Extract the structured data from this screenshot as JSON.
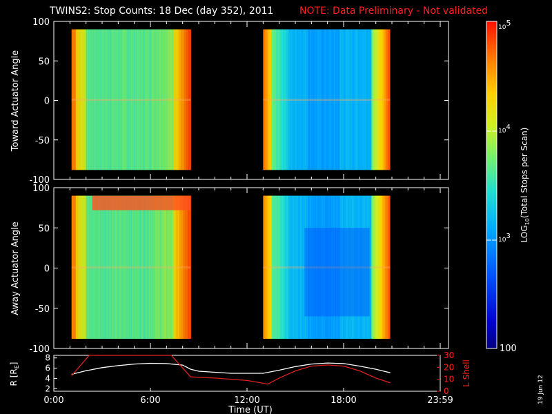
{
  "header": {
    "title": "TWINS2: Stop Counts: 18 Dec (day 352), 2011",
    "note": "NOTE: Data Preliminary - Not validated",
    "note_color": "#ff2020"
  },
  "footer": {
    "stamp": "19 Jun 12"
  },
  "colorbar": {
    "label": "LOG10(Total Stops per Scan)",
    "label_base": "LOG",
    "label_sub": "10",
    "label_rest": "(Total Stops per Scan)",
    "ticks": [
      "10",
      "5",
      "10",
      "4",
      "10",
      "3",
      "100"
    ],
    "tick_values": [
      100000,
      10000,
      1000,
      100
    ],
    "range": [
      100,
      100000
    ],
    "scale": "log"
  },
  "chart_data": [
    {
      "type": "heatmap",
      "name": "top-panel",
      "ylabel": "Toward Actuator Angle",
      "ylim": [
        -100,
        100
      ],
      "yticks": [
        "100",
        "50",
        "0",
        "-50",
        "-100"
      ],
      "xlim_hours": [
        0,
        24
      ],
      "blocks": [
        {
          "t_start": 1.1,
          "t_end": 8.5,
          "angle_range": [
            -88,
            90
          ],
          "profile": "warm"
        },
        {
          "t_start": 13.0,
          "t_end": 20.9,
          "angle_range": [
            -88,
            90
          ],
          "profile": "cool"
        }
      ]
    },
    {
      "type": "heatmap",
      "name": "bottom-panel",
      "ylabel": "Away Actuator Angle",
      "ylim": [
        -100,
        100
      ],
      "yticks": [
        "100",
        "50",
        "0",
        "-50",
        "-100"
      ],
      "xlim_hours": [
        0,
        24
      ],
      "blocks": [
        {
          "t_start": 1.1,
          "t_end": 8.5,
          "angle_range": [
            -88,
            90
          ],
          "profile": "warm"
        },
        {
          "t_start": 13.0,
          "t_end": 20.9,
          "angle_range": [
            -88,
            90
          ],
          "profile": "cool"
        }
      ]
    },
    {
      "type": "line",
      "name": "ephemeris-panel",
      "xlabel": "Time (UT)",
      "xticks": [
        "0:00",
        "6:00",
        "12:00",
        "18:00",
        "23:59"
      ],
      "ylabel_left": "R [RE]",
      "ylabel_left_base": "R [R",
      "ylabel_left_sub": "E",
      "ylabel_left_end": "]",
      "yticks_left": [
        "8",
        "6",
        "4",
        "2"
      ],
      "ylim_left": [
        1.5,
        8.5
      ],
      "ylabel_right": "L Shell",
      "yticks_right": [
        "30",
        "20",
        "10",
        "0"
      ],
      "ylim_right": [
        0,
        30
      ],
      "series": [
        {
          "axis": "left",
          "color": "#ffffff",
          "x": [
            1.1,
            2,
            3,
            4,
            5,
            6,
            7,
            8,
            8.5,
            9,
            10,
            11,
            12,
            13,
            14,
            15,
            16,
            17,
            18,
            19,
            20,
            20.9
          ],
          "y": [
            4.8,
            5.5,
            6.1,
            6.5,
            6.8,
            6.95,
            6.9,
            6.6,
            5.8,
            5.4,
            5.2,
            5.0,
            5.0,
            5.0,
            5.6,
            6.3,
            6.8,
            7.0,
            6.9,
            6.4,
            5.8,
            5.1
          ]
        },
        {
          "axis": "right",
          "color": "#e02020",
          "x": [
            1.1,
            2.2,
            2.4,
            7.3,
            8.5,
            10,
            12,
            13.3,
            14,
            15,
            16,
            17,
            18,
            19,
            20,
            20.9
          ],
          "y": [
            13,
            32,
            32,
            32,
            12,
            11,
            9,
            6,
            11,
            17,
            21,
            22,
            21,
            17,
            11,
            7
          ]
        }
      ]
    }
  ]
}
